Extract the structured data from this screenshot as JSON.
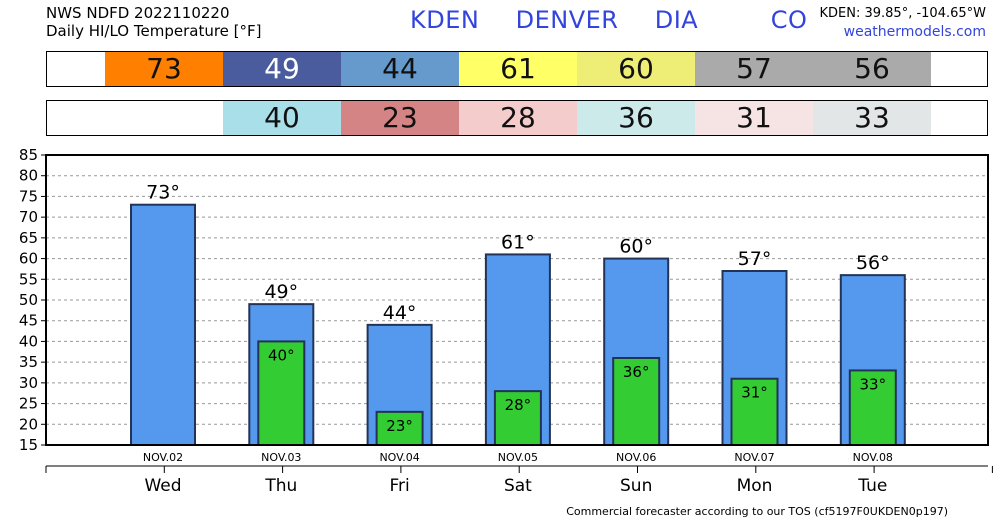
{
  "header": {
    "line1": "NWS NDFD 2022110220",
    "line2": "Daily HI/LO Temperature [°F]",
    "station": "KDEN  DENVER  DIA    CO",
    "coords": "KDEN: 39.85°, -104.65°W",
    "site": "weathermodels.com"
  },
  "hi_strip": [
    {
      "value": "73",
      "color": "#ff8000",
      "dark": false
    },
    {
      "value": "49",
      "color": "#4a5c9e",
      "dark": true
    },
    {
      "value": "44",
      "color": "#6699cc",
      "dark": false
    },
    {
      "value": "61",
      "color": "#ffff66",
      "dark": false
    },
    {
      "value": "60",
      "color": "#eeee77",
      "dark": false
    },
    {
      "value": "57",
      "color": "#aaaaaa",
      "dark": false
    },
    {
      "value": "56",
      "color": "#aaaaaa",
      "dark": false
    }
  ],
  "lo_strip": [
    {
      "value": "",
      "color": "#ffffff",
      "dark": false
    },
    {
      "value": "40",
      "color": "#a8dfe8",
      "dark": false
    },
    {
      "value": "23",
      "color": "#d48484",
      "dark": false
    },
    {
      "value": "28",
      "color": "#f5cccc",
      "dark": false
    },
    {
      "value": "36",
      "color": "#cceaea",
      "dark": false
    },
    {
      "value": "31",
      "color": "#f6e4e4",
      "dark": false
    },
    {
      "value": "33",
      "color": "#e2e6e6",
      "dark": false
    }
  ],
  "chart_data": {
    "type": "bar",
    "categories": [
      "Wed",
      "Thu",
      "Fri",
      "Sat",
      "Sun",
      "Mon",
      "Tue"
    ],
    "dates": [
      "NOV.02",
      "NOV.03",
      "NOV.04",
      "NOV.05",
      "NOV.06",
      "NOV.07",
      "NOV.08"
    ],
    "series": [
      {
        "name": "HI",
        "values": [
          73,
          49,
          44,
          61,
          60,
          57,
          56
        ],
        "color": "#5599ee"
      },
      {
        "name": "LO",
        "values": [
          null,
          40,
          23,
          28,
          36,
          31,
          33
        ],
        "color": "#33cc33"
      }
    ],
    "hi_labels": [
      "73°",
      "49°",
      "44°",
      "61°",
      "60°",
      "57°",
      "56°"
    ],
    "lo_labels": [
      "",
      "40°",
      "23°",
      "28°",
      "36°",
      "31°",
      "33°"
    ],
    "ylim": [
      15,
      85
    ],
    "yticks": [
      "15",
      "20",
      "25",
      "30",
      "35",
      "40",
      "45",
      "50",
      "55",
      "60",
      "65",
      "70",
      "75",
      "80",
      "85"
    ],
    "grid": true
  },
  "footer": "Commercial forecaster according to our TOS (cf5197F0UKDEN0p197)"
}
